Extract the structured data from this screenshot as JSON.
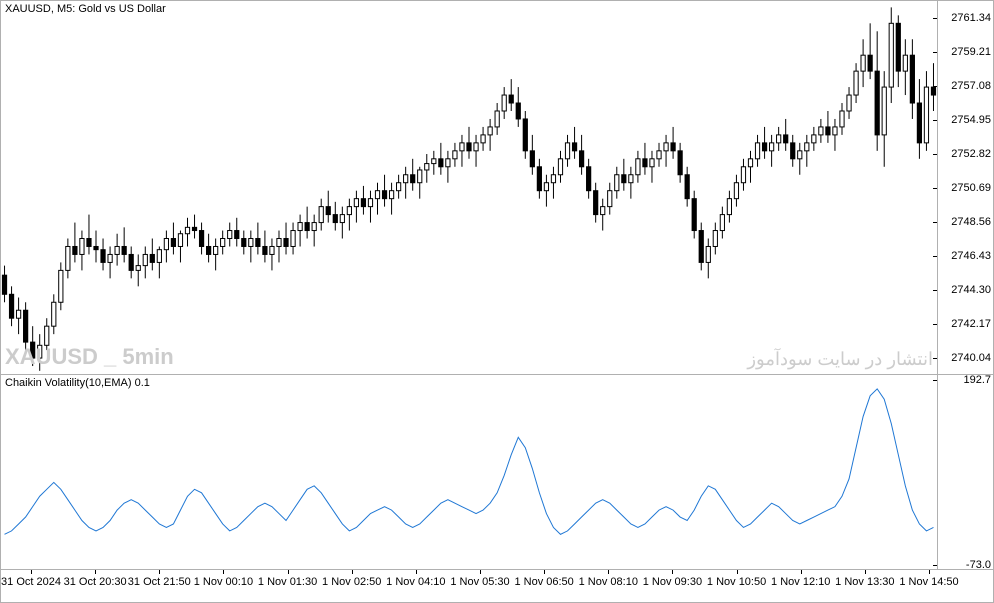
{
  "pricePanel": {
    "title": "XAUUSD, M5:  Gold vs US Dollar",
    "watermarkLeft": "XAUUSD _ 5min",
    "watermarkRight": "انتشار در سایت سودآموز",
    "ylim": [
      2739.0,
      2762.4
    ],
    "yTicks": [
      2740.04,
      2742.17,
      2744.3,
      2746.43,
      2748.56,
      2750.69,
      2752.82,
      2754.95,
      2757.08,
      2759.21,
      2761.34
    ],
    "colors": {
      "candle_up_body": "#ffffff",
      "candle_down_body": "#000000",
      "candle_border": "#000000",
      "wick": "#000000",
      "background": "#ffffff",
      "border": "#b0b0b0",
      "text": "#000000",
      "watermark": "#cccccc"
    },
    "fontSize": {
      "title": 11,
      "ticks": 11,
      "watermark": 22
    },
    "candles": [
      {
        "o": 2745.2,
        "h": 2745.8,
        "l": 2743.5,
        "c": 2744.0
      },
      {
        "o": 2744.0,
        "h": 2744.5,
        "l": 2742.0,
        "c": 2742.5
      },
      {
        "o": 2742.5,
        "h": 2743.8,
        "l": 2741.5,
        "c": 2743.0
      },
      {
        "o": 2743.0,
        "h": 2743.5,
        "l": 2740.5,
        "c": 2741.0
      },
      {
        "o": 2741.0,
        "h": 2742.0,
        "l": 2739.5,
        "c": 2740.0
      },
      {
        "o": 2740.0,
        "h": 2741.5,
        "l": 2739.2,
        "c": 2740.8
      },
      {
        "o": 2740.8,
        "h": 2742.5,
        "l": 2740.5,
        "c": 2742.0
      },
      {
        "o": 2742.0,
        "h": 2744.0,
        "l": 2741.5,
        "c": 2743.5
      },
      {
        "o": 2743.5,
        "h": 2746.0,
        "l": 2743.0,
        "c": 2745.5
      },
      {
        "o": 2745.5,
        "h": 2747.5,
        "l": 2745.0,
        "c": 2747.0
      },
      {
        "o": 2747.0,
        "h": 2748.5,
        "l": 2746.0,
        "c": 2746.5
      },
      {
        "o": 2746.5,
        "h": 2748.0,
        "l": 2745.5,
        "c": 2747.5
      },
      {
        "o": 2747.5,
        "h": 2749.0,
        "l": 2746.5,
        "c": 2747.0
      },
      {
        "o": 2747.0,
        "h": 2748.0,
        "l": 2746.0,
        "c": 2746.8
      },
      {
        "o": 2746.8,
        "h": 2747.5,
        "l": 2745.5,
        "c": 2746.0
      },
      {
        "o": 2746.0,
        "h": 2747.0,
        "l": 2745.0,
        "c": 2746.5
      },
      {
        "o": 2746.5,
        "h": 2747.8,
        "l": 2745.8,
        "c": 2747.0
      },
      {
        "o": 2747.0,
        "h": 2748.2,
        "l": 2746.0,
        "c": 2746.5
      },
      {
        "o": 2746.5,
        "h": 2747.0,
        "l": 2745.0,
        "c": 2745.5
      },
      {
        "o": 2745.5,
        "h": 2746.5,
        "l": 2744.5,
        "c": 2745.8
      },
      {
        "o": 2745.8,
        "h": 2747.0,
        "l": 2745.0,
        "c": 2746.5
      },
      {
        "o": 2746.5,
        "h": 2747.5,
        "l": 2745.5,
        "c": 2746.0
      },
      {
        "o": 2746.0,
        "h": 2747.0,
        "l": 2745.0,
        "c": 2746.8
      },
      {
        "o": 2746.8,
        "h": 2748.0,
        "l": 2746.0,
        "c": 2747.5
      },
      {
        "o": 2747.5,
        "h": 2748.5,
        "l": 2746.5,
        "c": 2747.0
      },
      {
        "o": 2747.0,
        "h": 2748.0,
        "l": 2746.0,
        "c": 2747.8
      },
      {
        "o": 2747.8,
        "h": 2748.8,
        "l": 2747.0,
        "c": 2748.2
      },
      {
        "o": 2748.2,
        "h": 2749.0,
        "l": 2747.5,
        "c": 2748.0
      },
      {
        "o": 2748.0,
        "h": 2748.5,
        "l": 2746.5,
        "c": 2747.0
      },
      {
        "o": 2747.0,
        "h": 2747.8,
        "l": 2746.0,
        "c": 2746.5
      },
      {
        "o": 2746.5,
        "h": 2747.5,
        "l": 2745.5,
        "c": 2747.0
      },
      {
        "o": 2747.0,
        "h": 2748.0,
        "l": 2746.5,
        "c": 2747.5
      },
      {
        "o": 2747.5,
        "h": 2748.5,
        "l": 2747.0,
        "c": 2748.0
      },
      {
        "o": 2748.0,
        "h": 2748.8,
        "l": 2747.0,
        "c": 2747.5
      },
      {
        "o": 2747.5,
        "h": 2748.0,
        "l": 2746.5,
        "c": 2747.0
      },
      {
        "o": 2747.0,
        "h": 2748.0,
        "l": 2746.0,
        "c": 2747.5
      },
      {
        "o": 2747.5,
        "h": 2748.5,
        "l": 2746.5,
        "c": 2747.0
      },
      {
        "o": 2747.0,
        "h": 2748.0,
        "l": 2746.0,
        "c": 2746.5
      },
      {
        "o": 2746.5,
        "h": 2747.5,
        "l": 2745.5,
        "c": 2747.0
      },
      {
        "o": 2747.0,
        "h": 2748.0,
        "l": 2746.0,
        "c": 2747.5
      },
      {
        "o": 2747.5,
        "h": 2748.5,
        "l": 2746.5,
        "c": 2747.0
      },
      {
        "o": 2747.0,
        "h": 2748.5,
        "l": 2746.5,
        "c": 2748.0
      },
      {
        "o": 2748.0,
        "h": 2749.0,
        "l": 2747.0,
        "c": 2748.5
      },
      {
        "o": 2748.5,
        "h": 2749.5,
        "l": 2747.5,
        "c": 2748.0
      },
      {
        "o": 2748.0,
        "h": 2749.0,
        "l": 2747.0,
        "c": 2748.5
      },
      {
        "o": 2748.5,
        "h": 2750.0,
        "l": 2748.0,
        "c": 2749.5
      },
      {
        "o": 2749.5,
        "h": 2750.5,
        "l": 2748.5,
        "c": 2749.0
      },
      {
        "o": 2749.0,
        "h": 2749.8,
        "l": 2748.0,
        "c": 2748.5
      },
      {
        "o": 2748.5,
        "h": 2749.5,
        "l": 2747.5,
        "c": 2749.0
      },
      {
        "o": 2749.0,
        "h": 2750.0,
        "l": 2748.0,
        "c": 2749.5
      },
      {
        "o": 2749.5,
        "h": 2750.5,
        "l": 2748.5,
        "c": 2750.0
      },
      {
        "o": 2750.0,
        "h": 2750.8,
        "l": 2749.0,
        "c": 2749.5
      },
      {
        "o": 2749.5,
        "h": 2750.5,
        "l": 2748.5,
        "c": 2750.0
      },
      {
        "o": 2750.0,
        "h": 2751.0,
        "l": 2749.0,
        "c": 2750.5
      },
      {
        "o": 2750.5,
        "h": 2751.5,
        "l": 2749.5,
        "c": 2750.0
      },
      {
        "o": 2750.0,
        "h": 2751.0,
        "l": 2749.0,
        "c": 2750.5
      },
      {
        "o": 2750.5,
        "h": 2751.5,
        "l": 2750.0,
        "c": 2751.0
      },
      {
        "o": 2751.0,
        "h": 2752.0,
        "l": 2750.0,
        "c": 2751.5
      },
      {
        "o": 2751.5,
        "h": 2752.5,
        "l": 2750.5,
        "c": 2751.0
      },
      {
        "o": 2751.0,
        "h": 2752.0,
        "l": 2750.0,
        "c": 2751.8
      },
      {
        "o": 2751.8,
        "h": 2752.8,
        "l": 2751.0,
        "c": 2752.2
      },
      {
        "o": 2752.2,
        "h": 2753.0,
        "l": 2751.5,
        "c": 2752.5
      },
      {
        "o": 2752.5,
        "h": 2753.5,
        "l": 2751.5,
        "c": 2752.0
      },
      {
        "o": 2752.0,
        "h": 2753.0,
        "l": 2751.0,
        "c": 2752.5
      },
      {
        "o": 2752.5,
        "h": 2753.5,
        "l": 2752.0,
        "c": 2753.0
      },
      {
        "o": 2753.0,
        "h": 2754.0,
        "l": 2752.0,
        "c": 2753.5
      },
      {
        "o": 2753.5,
        "h": 2754.5,
        "l": 2752.5,
        "c": 2753.0
      },
      {
        "o": 2753.0,
        "h": 2754.0,
        "l": 2752.0,
        "c": 2753.5
      },
      {
        "o": 2753.5,
        "h": 2754.5,
        "l": 2753.0,
        "c": 2754.0
      },
      {
        "o": 2754.0,
        "h": 2755.0,
        "l": 2753.0,
        "c": 2754.5
      },
      {
        "o": 2754.5,
        "h": 2756.0,
        "l": 2754.0,
        "c": 2755.5
      },
      {
        "o": 2755.5,
        "h": 2757.0,
        "l": 2755.0,
        "c": 2756.5
      },
      {
        "o": 2756.5,
        "h": 2757.5,
        "l": 2755.5,
        "c": 2756.0
      },
      {
        "o": 2756.0,
        "h": 2757.0,
        "l": 2754.5,
        "c": 2755.0
      },
      {
        "o": 2755.0,
        "h": 2755.5,
        "l": 2752.5,
        "c": 2753.0
      },
      {
        "o": 2753.0,
        "h": 2754.0,
        "l": 2751.5,
        "c": 2752.0
      },
      {
        "o": 2752.0,
        "h": 2752.5,
        "l": 2750.0,
        "c": 2750.5
      },
      {
        "o": 2750.5,
        "h": 2751.5,
        "l": 2749.5,
        "c": 2751.0
      },
      {
        "o": 2751.0,
        "h": 2752.0,
        "l": 2750.0,
        "c": 2751.5
      },
      {
        "o": 2751.5,
        "h": 2753.0,
        "l": 2751.0,
        "c": 2752.5
      },
      {
        "o": 2752.5,
        "h": 2754.0,
        "l": 2752.0,
        "c": 2753.5
      },
      {
        "o": 2753.5,
        "h": 2754.5,
        "l": 2752.5,
        "c": 2753.0
      },
      {
        "o": 2753.0,
        "h": 2754.0,
        "l": 2751.5,
        "c": 2752.0
      },
      {
        "o": 2752.0,
        "h": 2752.5,
        "l": 2750.0,
        "c": 2750.5
      },
      {
        "o": 2750.5,
        "h": 2751.0,
        "l": 2748.5,
        "c": 2749.0
      },
      {
        "o": 2749.0,
        "h": 2750.0,
        "l": 2748.0,
        "c": 2749.5
      },
      {
        "o": 2749.5,
        "h": 2751.0,
        "l": 2749.0,
        "c": 2750.5
      },
      {
        "o": 2750.5,
        "h": 2752.0,
        "l": 2750.0,
        "c": 2751.5
      },
      {
        "o": 2751.5,
        "h": 2752.5,
        "l": 2750.5,
        "c": 2751.0
      },
      {
        "o": 2751.0,
        "h": 2752.0,
        "l": 2750.0,
        "c": 2751.5
      },
      {
        "o": 2751.5,
        "h": 2753.0,
        "l": 2751.0,
        "c": 2752.5
      },
      {
        "o": 2752.5,
        "h": 2753.5,
        "l": 2751.5,
        "c": 2752.0
      },
      {
        "o": 2752.0,
        "h": 2753.0,
        "l": 2751.0,
        "c": 2752.5
      },
      {
        "o": 2752.5,
        "h": 2753.5,
        "l": 2752.0,
        "c": 2753.0
      },
      {
        "o": 2753.0,
        "h": 2754.0,
        "l": 2752.0,
        "c": 2753.5
      },
      {
        "o": 2753.5,
        "h": 2754.5,
        "l": 2752.5,
        "c": 2753.0
      },
      {
        "o": 2753.0,
        "h": 2753.5,
        "l": 2751.0,
        "c": 2751.5
      },
      {
        "o": 2751.5,
        "h": 2752.0,
        "l": 2749.5,
        "c": 2750.0
      },
      {
        "o": 2750.0,
        "h": 2750.5,
        "l": 2747.5,
        "c": 2748.0
      },
      {
        "o": 2748.0,
        "h": 2748.5,
        "l": 2745.5,
        "c": 2746.0
      },
      {
        "o": 2746.0,
        "h": 2747.5,
        "l": 2745.0,
        "c": 2747.0
      },
      {
        "o": 2747.0,
        "h": 2748.5,
        "l": 2746.5,
        "c": 2748.0
      },
      {
        "o": 2748.0,
        "h": 2749.5,
        "l": 2747.5,
        "c": 2749.0
      },
      {
        "o": 2749.0,
        "h": 2750.5,
        "l": 2748.5,
        "c": 2750.0
      },
      {
        "o": 2750.0,
        "h": 2751.5,
        "l": 2749.5,
        "c": 2751.0
      },
      {
        "o": 2751.0,
        "h": 2752.5,
        "l": 2750.5,
        "c": 2752.0
      },
      {
        "o": 2752.0,
        "h": 2753.0,
        "l": 2751.0,
        "c": 2752.5
      },
      {
        "o": 2752.5,
        "h": 2754.0,
        "l": 2752.0,
        "c": 2753.5
      },
      {
        "o": 2753.5,
        "h": 2754.5,
        "l": 2752.5,
        "c": 2753.0
      },
      {
        "o": 2753.0,
        "h": 2754.0,
        "l": 2752.0,
        "c": 2753.5
      },
      {
        "o": 2753.5,
        "h": 2754.5,
        "l": 2753.0,
        "c": 2754.0
      },
      {
        "o": 2754.0,
        "h": 2755.0,
        "l": 2753.0,
        "c": 2753.5
      },
      {
        "o": 2753.5,
        "h": 2754.0,
        "l": 2752.0,
        "c": 2752.5
      },
      {
        "o": 2752.5,
        "h": 2753.5,
        "l": 2751.5,
        "c": 2753.0
      },
      {
        "o": 2753.0,
        "h": 2754.0,
        "l": 2752.0,
        "c": 2753.5
      },
      {
        "o": 2753.5,
        "h": 2754.5,
        "l": 2753.0,
        "c": 2754.0
      },
      {
        "o": 2754.0,
        "h": 2755.0,
        "l": 2753.5,
        "c": 2754.5
      },
      {
        "o": 2754.5,
        "h": 2755.5,
        "l": 2753.5,
        "c": 2754.0
      },
      {
        "o": 2754.0,
        "h": 2755.0,
        "l": 2753.0,
        "c": 2754.5
      },
      {
        "o": 2754.5,
        "h": 2756.0,
        "l": 2754.0,
        "c": 2755.5
      },
      {
        "o": 2755.5,
        "h": 2757.0,
        "l": 2755.0,
        "c": 2756.5
      },
      {
        "o": 2756.5,
        "h": 2758.5,
        "l": 2756.0,
        "c": 2758.0
      },
      {
        "o": 2758.0,
        "h": 2760.0,
        "l": 2757.0,
        "c": 2759.0
      },
      {
        "o": 2759.0,
        "h": 2761.0,
        "l": 2757.5,
        "c": 2758.0
      },
      {
        "o": 2758.0,
        "h": 2760.5,
        "l": 2753.0,
        "c": 2754.0
      },
      {
        "o": 2754.0,
        "h": 2758.0,
        "l": 2752.0,
        "c": 2757.0
      },
      {
        "o": 2757.0,
        "h": 2762.0,
        "l": 2756.0,
        "c": 2761.0
      },
      {
        "o": 2761.0,
        "h": 2761.5,
        "l": 2757.0,
        "c": 2758.0
      },
      {
        "o": 2758.0,
        "h": 2760.0,
        "l": 2756.5,
        "c": 2759.0
      },
      {
        "o": 2759.0,
        "h": 2760.0,
        "l": 2755.0,
        "c": 2756.0
      },
      {
        "o": 2756.0,
        "h": 2757.5,
        "l": 2752.5,
        "c": 2753.5
      },
      {
        "o": 2753.5,
        "h": 2758.0,
        "l": 2753.0,
        "c": 2757.0
      },
      {
        "o": 2757.0,
        "h": 2758.5,
        "l": 2755.5,
        "c": 2756.5
      }
    ]
  },
  "indicatorPanel": {
    "title": "Chaikin Volatility(10,EMA) 0.1",
    "ylim": [
      -80,
      200
    ],
    "yTicks": [
      -73.0,
      192.7
    ],
    "colors": {
      "line": "#1f77d4",
      "background": "#ffffff"
    },
    "line_width": 1,
    "values": [
      -30,
      -25,
      -15,
      -5,
      10,
      25,
      35,
      45,
      35,
      20,
      5,
      -10,
      -20,
      -25,
      -20,
      -10,
      5,
      15,
      20,
      15,
      5,
      -5,
      -15,
      -20,
      -15,
      5,
      25,
      35,
      30,
      15,
      0,
      -15,
      -25,
      -20,
      -10,
      0,
      10,
      15,
      10,
      0,
      -10,
      5,
      20,
      35,
      40,
      30,
      15,
      0,
      -15,
      -25,
      -20,
      -10,
      0,
      5,
      10,
      5,
      -5,
      -15,
      -20,
      -15,
      -5,
      5,
      15,
      20,
      15,
      10,
      5,
      0,
      5,
      15,
      30,
      55,
      85,
      110,
      95,
      65,
      30,
      0,
      -20,
      -30,
      -25,
      -15,
      -5,
      5,
      15,
      20,
      15,
      5,
      -5,
      -15,
      -20,
      -15,
      -5,
      5,
      10,
      5,
      -5,
      -10,
      5,
      25,
      40,
      35,
      20,
      5,
      -10,
      -20,
      -15,
      -5,
      5,
      15,
      10,
      0,
      -10,
      -15,
      -10,
      -5,
      0,
      5,
      10,
      25,
      50,
      95,
      140,
      170,
      180,
      165,
      130,
      85,
      40,
      5,
      -15,
      -25,
      -20
    ]
  },
  "timeAxis": {
    "labels": [
      "31 Oct 2024",
      "31 Oct 20:30",
      "31 Oct 21:50",
      "1 Nov 00:10",
      "1 Nov 01:30",
      "1 Nov 02:50",
      "1 Nov 04:10",
      "1 Nov 05:30",
      "1 Nov 06:50",
      "1 Nov 08:10",
      "1 Nov 09:30",
      "1 Nov 10:50",
      "1 Nov 12:10",
      "1 Nov 13:30",
      "1 Nov 14:50"
    ],
    "fontSize": 11
  }
}
